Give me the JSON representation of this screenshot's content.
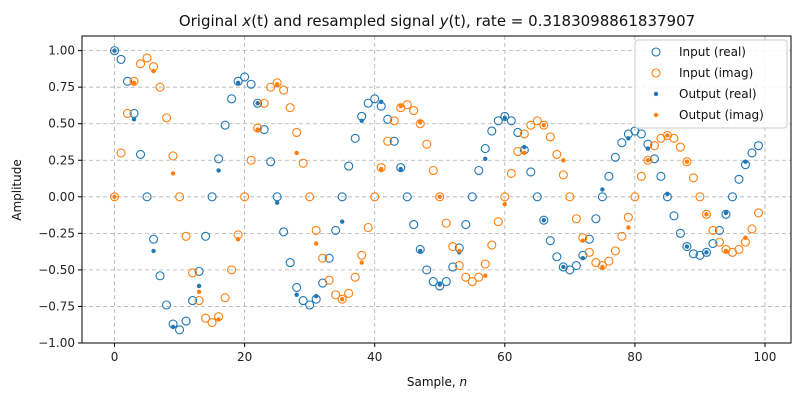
{
  "chart_data": {
    "type": "scatter",
    "title": "Original x(t) and resampled signal y(t), rate = 0.3183098861837907",
    "title_parts": {
      "prefix": "Original ",
      "x_var": "x",
      "mid": "(t) and resampled signal ",
      "y_var": "y",
      "suffix": "(t), rate = 0.3183098861837907"
    },
    "xlabel": "Sample, n",
    "xlabel_parts": {
      "prefix": "Sample, ",
      "var": "n"
    },
    "ylabel": "Amplitude",
    "xlim": [
      -5,
      104
    ],
    "ylim": [
      -1.0,
      1.1
    ],
    "xticks": [
      0,
      20,
      40,
      60,
      80,
      100
    ],
    "yticks": [
      -1.0,
      -0.75,
      -0.5,
      -0.25,
      0.0,
      0.25,
      0.5,
      0.75,
      1.0
    ],
    "ytick_labels": [
      "−1.00",
      "−0.75",
      "−0.50",
      "−0.25",
      "0.00",
      "0.25",
      "0.50",
      "0.75",
      "1.00"
    ],
    "grid": true,
    "legend_position": "top-right",
    "legend": [
      "Input (real)",
      "Input (imag)",
      "Output (real)",
      "Output (imag)"
    ],
    "colors": {
      "real": "#1f77b4",
      "imag": "#ff7f0e",
      "grid": "#b0b0b0"
    },
    "series": [
      {
        "name": "Input (real)",
        "marker": "hollow-circle",
        "color": "#1f77b4",
        "x": [
          0,
          1,
          2,
          3,
          4,
          5,
          6,
          7,
          8,
          9,
          10,
          11,
          12,
          13,
          14,
          15,
          16,
          17,
          18,
          19,
          20,
          21,
          22,
          23,
          24,
          25,
          26,
          27,
          28,
          29,
          30,
          31,
          32,
          33,
          34,
          35,
          36,
          37,
          38,
          39,
          40,
          41,
          42,
          43,
          44,
          45,
          46,
          47,
          48,
          49,
          50,
          51,
          52,
          53,
          54,
          55,
          56,
          57,
          58,
          59,
          60,
          61,
          62,
          63,
          64,
          65,
          66,
          67,
          68,
          69,
          70,
          71,
          72,
          73,
          74,
          75,
          76,
          77,
          78,
          79,
          80,
          81,
          82,
          83,
          84,
          85,
          86,
          87,
          88,
          89,
          90,
          91,
          92,
          93,
          94,
          95,
          96,
          97,
          98,
          99
        ],
        "y": [
          1.0,
          0.94,
          0.79,
          0.57,
          0.29,
          0.0,
          -0.29,
          -0.54,
          -0.74,
          -0.87,
          -0.91,
          -0.85,
          -0.71,
          -0.51,
          -0.27,
          0.0,
          0.26,
          0.49,
          0.67,
          0.79,
          0.82,
          0.77,
          0.64,
          0.46,
          0.24,
          0.0,
          -0.24,
          -0.45,
          -0.62,
          -0.71,
          -0.74,
          -0.7,
          -0.59,
          -0.42,
          -0.23,
          0.0,
          0.21,
          0.4,
          0.55,
          0.64,
          0.67,
          0.62,
          0.53,
          0.38,
          0.2,
          0.0,
          -0.19,
          -0.36,
          -0.5,
          -0.58,
          -0.61,
          -0.58,
          -0.48,
          -0.35,
          -0.19,
          0.0,
          0.18,
          0.33,
          0.45,
          0.52,
          0.55,
          0.52,
          0.44,
          0.32,
          0.17,
          0.0,
          -0.16,
          -0.3,
          -0.41,
          -0.48,
          -0.5,
          -0.47,
          -0.4,
          -0.29,
          -0.15,
          0.0,
          0.14,
          0.27,
          0.37,
          0.43,
          0.45,
          0.43,
          0.36,
          0.26,
          0.14,
          0.0,
          -0.13,
          -0.25,
          -0.34,
          -0.39,
          -0.4,
          -0.38,
          -0.32,
          -0.23,
          -0.12,
          0.0,
          0.12,
          0.22,
          0.3,
          0.35
        ]
      },
      {
        "name": "Input (imag)",
        "marker": "hollow-circle",
        "color": "#ff7f0e",
        "x": [
          0,
          1,
          2,
          3,
          4,
          5,
          6,
          7,
          8,
          9,
          10,
          11,
          12,
          13,
          14,
          15,
          16,
          17,
          18,
          19,
          20,
          21,
          22,
          23,
          24,
          25,
          26,
          27,
          28,
          29,
          30,
          31,
          32,
          33,
          34,
          35,
          36,
          37,
          38,
          39,
          40,
          41,
          42,
          43,
          44,
          45,
          46,
          47,
          48,
          49,
          50,
          51,
          52,
          53,
          54,
          55,
          56,
          57,
          58,
          59,
          60,
          61,
          62,
          63,
          64,
          65,
          66,
          67,
          68,
          69,
          70,
          71,
          72,
          73,
          74,
          75,
          76,
          77,
          78,
          79,
          80,
          81,
          82,
          83,
          84,
          85,
          86,
          87,
          88,
          89,
          90,
          91,
          92,
          93,
          94,
          95,
          96,
          97,
          98,
          99
        ],
        "y": [
          0.0,
          0.3,
          0.57,
          0.79,
          0.91,
          0.95,
          0.89,
          0.75,
          0.54,
          0.28,
          0.0,
          -0.27,
          -0.52,
          -0.71,
          -0.83,
          -0.86,
          -0.82,
          -0.69,
          -0.5,
          -0.26,
          0.0,
          0.25,
          0.47,
          0.64,
          0.75,
          0.78,
          0.73,
          0.61,
          0.44,
          0.23,
          0.0,
          -0.23,
          -0.42,
          -0.57,
          -0.67,
          -0.7,
          -0.66,
          -0.55,
          -0.4,
          -0.21,
          0.0,
          0.2,
          0.38,
          0.52,
          0.61,
          0.63,
          0.59,
          0.5,
          0.36,
          0.18,
          0.0,
          -0.18,
          -0.34,
          -0.47,
          -0.55,
          -0.58,
          -0.55,
          -0.46,
          -0.33,
          -0.17,
          0.0,
          0.16,
          0.31,
          0.43,
          0.49,
          0.52,
          0.49,
          0.41,
          0.29,
          0.15,
          0.0,
          -0.15,
          -0.28,
          -0.38,
          -0.45,
          -0.47,
          -0.44,
          -0.37,
          -0.27,
          -0.14,
          0.0,
          0.14,
          0.25,
          0.35,
          0.4,
          0.42,
          0.4,
          0.34,
          0.24,
          0.13,
          0.0,
          -0.12,
          -0.23,
          -0.31,
          -0.36,
          -0.38,
          -0.36,
          -0.31,
          -0.22,
          -0.11
        ]
      },
      {
        "name": "Output (real)",
        "marker": "dot",
        "color": "#1f77b4",
        "x": [
          0,
          3,
          6,
          9,
          13,
          16,
          19,
          22,
          25,
          28,
          31,
          35,
          38,
          41,
          44,
          47,
          50,
          53,
          57,
          60,
          63,
          66,
          69,
          72,
          75,
          79,
          82,
          85,
          88,
          91,
          94,
          97
        ],
        "y": [
          1.0,
          0.53,
          -0.37,
          -0.89,
          -0.61,
          0.18,
          0.78,
          0.64,
          -0.04,
          -0.67,
          -0.68,
          -0.17,
          0.52,
          0.65,
          0.19,
          -0.37,
          -0.6,
          -0.38,
          0.26,
          0.54,
          0.34,
          -0.16,
          -0.48,
          -0.42,
          0.05,
          0.4,
          0.33,
          0.02,
          -0.34,
          -0.38,
          -0.11,
          0.24
        ]
      },
      {
        "name": "Output (imag)",
        "marker": "dot",
        "color": "#ff7f0e",
        "x": [
          0,
          3,
          6,
          9,
          13,
          16,
          19,
          22,
          25,
          28,
          31,
          35,
          38,
          41,
          44,
          47,
          50,
          53,
          57,
          60,
          63,
          66,
          69,
          72,
          75,
          79,
          82,
          85,
          88,
          91,
          94,
          97
        ],
        "y": [
          0.0,
          0.78,
          0.86,
          0.16,
          -0.65,
          -0.84,
          -0.29,
          0.46,
          0.77,
          0.3,
          -0.32,
          -0.7,
          -0.45,
          0.19,
          0.62,
          0.51,
          0.0,
          -0.37,
          -0.54,
          -0.05,
          0.3,
          0.49,
          0.25,
          -0.3,
          -0.48,
          -0.21,
          0.25,
          0.42,
          0.24,
          -0.12,
          -0.37,
          -0.28
        ]
      }
    ]
  }
}
